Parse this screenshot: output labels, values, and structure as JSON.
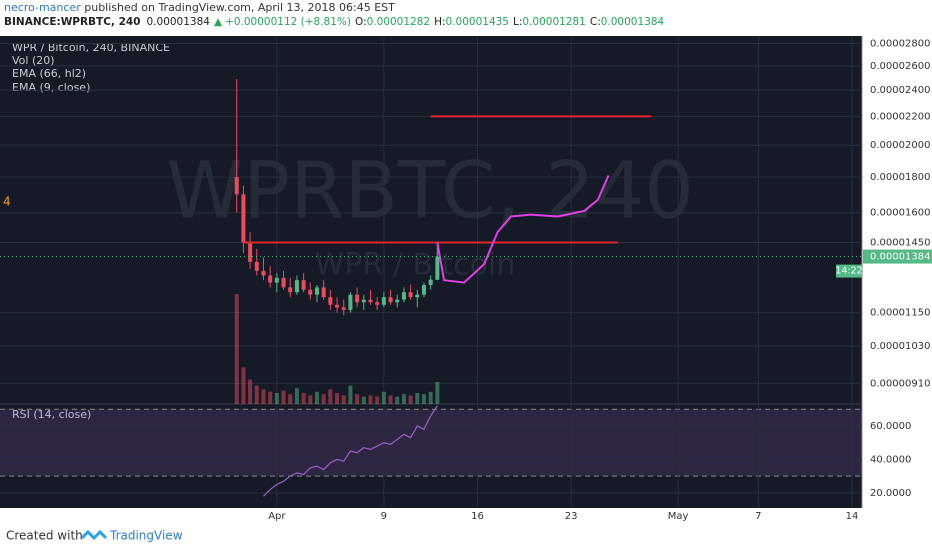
{
  "header": {
    "author": "necro-mancer",
    "published": " published on TradingView.com, April 13, 2018 06:45 EST",
    "symbol": "BINANCE:WPRBTC, 240",
    "last": "0.00001384",
    "arrow": "▲",
    "change": "+0.00000112 (+8.81%)",
    "o_label": "O:",
    "o": "0.00001282",
    "h_label": "H:",
    "h": "0.00001435",
    "l_label": "L:",
    "l": "0.00001281",
    "c_label": "C:",
    "c": "0.00001384"
  },
  "chart_data": {
    "type": "candlestick",
    "log_scale": true,
    "grid": true,
    "legend": [
      "WPR / Bitcoin, 240, BINANCE",
      "Vol (20)",
      "EMA (66, hl2)",
      "EMA (9, close)"
    ],
    "watermark": "WPRBTC, 240",
    "watermark_sub": "WPR / Bitcoin",
    "edge_label": "4",
    "countdown": "14:22",
    "up_color": "#53b987",
    "down_color": "#eb4d5c",
    "x": [
      -2,
      -1.5,
      -1,
      -0.5,
      0,
      0.5,
      1,
      1.5,
      2,
      2.5,
      3,
      3.5,
      4,
      4.5,
      5,
      5.5,
      6,
      6.5,
      7,
      7.5,
      8,
      8.5,
      9,
      9.5,
      10,
      10.5,
      11,
      11.5,
      12,
      12.5,
      13
    ],
    "open": [
      1.8e-05,
      1.7e-05,
      1.45e-05,
      1.36e-05,
      1.32e-05,
      1.3e-05,
      1.27e-05,
      1.29e-05,
      1.25e-05,
      1.23e-05,
      1.28e-05,
      1.24e-05,
      1.22e-05,
      1.25e-05,
      1.21e-05,
      1.18e-05,
      1.17e-05,
      1.16e-05,
      1.22e-05,
      1.19e-05,
      1.2e-05,
      1.19e-05,
      1.18e-05,
      1.21e-05,
      1.19e-05,
      1.2e-05,
      1.23e-05,
      1.21e-05,
      1.22e-05,
      1.26e-05,
      1.282e-05
    ],
    "high": [
      2.49e-05,
      1.75e-05,
      1.5e-05,
      1.42e-05,
      1.38e-05,
      1.34e-05,
      1.31e-05,
      1.32e-05,
      1.29e-05,
      1.3e-05,
      1.31e-05,
      1.27e-05,
      1.26e-05,
      1.28e-05,
      1.24e-05,
      1.21e-05,
      1.2e-05,
      1.23e-05,
      1.25e-05,
      1.22e-05,
      1.24e-05,
      1.21e-05,
      1.23e-05,
      1.24e-05,
      1.22e-05,
      1.25e-05,
      1.26e-05,
      1.24e-05,
      1.27e-05,
      1.3e-05,
      1.435e-05
    ],
    "low": [
      1.6e-05,
      1.4e-05,
      1.33e-05,
      1.3e-05,
      1.28e-05,
      1.25e-05,
      1.23e-05,
      1.24e-05,
      1.21e-05,
      1.22e-05,
      1.23e-05,
      1.2e-05,
      1.19e-05,
      1.2e-05,
      1.16e-05,
      1.15e-05,
      1.14e-05,
      1.15e-05,
      1.17e-05,
      1.16e-05,
      1.18e-05,
      1.16e-05,
      1.17e-05,
      1.18e-05,
      1.17e-05,
      1.19e-05,
      1.2e-05,
      1.17e-05,
      1.21e-05,
      1.24e-05,
      1.281e-05
    ],
    "close": [
      1.7e-05,
      1.45e-05,
      1.36e-05,
      1.32e-05,
      1.3e-05,
      1.27e-05,
      1.29e-05,
      1.25e-05,
      1.23e-05,
      1.28e-05,
      1.24e-05,
      1.22e-05,
      1.25e-05,
      1.21e-05,
      1.18e-05,
      1.17e-05,
      1.16e-05,
      1.22e-05,
      1.19e-05,
      1.2e-05,
      1.19e-05,
      1.18e-05,
      1.21e-05,
      1.19e-05,
      1.2e-05,
      1.23e-05,
      1.21e-05,
      1.22e-05,
      1.26e-05,
      1.282e-05,
      1.384e-05
    ],
    "volume": [
      900,
      300,
      200,
      150,
      120,
      100,
      90,
      110,
      80,
      130,
      90,
      70,
      100,
      80,
      120,
      90,
      70,
      150,
      80,
      60,
      70,
      60,
      100,
      70,
      60,
      80,
      70,
      90,
      80,
      100,
      180
    ],
    "xlim": [
      -19.7,
      44.75
    ],
    "xticks": [
      {
        "value": 1,
        "label": "Apr"
      },
      9,
      16,
      23,
      {
        "value": 31,
        "label": "May"
      },
      {
        "value": 37,
        "label": "7"
      },
      {
        "value": 44,
        "label": "14"
      }
    ],
    "ylim": [
      8.5e-06,
      2.87e-05
    ],
    "yticks": [
      {
        "value": 2.8e-05,
        "label": "0.00002800"
      },
      {
        "value": 2.6e-05,
        "label": "0.00002600"
      },
      {
        "value": 2.4e-05,
        "label": "0.00002400"
      },
      {
        "value": 2.2e-05,
        "label": "0.00002200"
      },
      {
        "value": 2e-05,
        "label": "0.00002000"
      },
      {
        "value": 1.8e-05,
        "label": "0.00001800"
      },
      {
        "value": 1.6e-05,
        "label": "0.00001600"
      },
      {
        "value": 1.45e-05,
        "label": "0.00001450"
      },
      {
        "value": 1.15e-05,
        "label": "0.00001150"
      },
      {
        "value": 1.03e-05,
        "label": "0.00001030"
      },
      {
        "value": 9.1e-06,
        "label": "0.00000910"
      }
    ],
    "drawings": [
      {
        "color": "#e0252d",
        "x": [
          12.5,
          29
        ],
        "values": [
          2.2e-05,
          2.2e-05
        ]
      },
      {
        "color": "#e0252d",
        "x": [
          -1.5,
          26.5
        ],
        "values": [
          1.45e-05,
          1.45e-05
        ]
      },
      {
        "color": "#e040e8",
        "x": [
          13,
          13.5,
          15,
          16.5,
          17.5,
          18.5,
          20,
          22,
          24,
          25,
          25.8
        ],
        "values": [
          1.45e-05,
          1.28e-05,
          1.27e-05,
          1.35e-05,
          1.5e-05,
          1.58e-05,
          1.59e-05,
          1.58e-05,
          1.61e-05,
          1.67e-05,
          1.81e-05
        ]
      }
    ],
    "rsi": {
      "name": "RSI (14, close)",
      "color": "#9c5fc4",
      "values": [
        null,
        null,
        null,
        null,
        18,
        22,
        25,
        27,
        30,
        32,
        31,
        35,
        36,
        34,
        38,
        40,
        39,
        45,
        44,
        47,
        46,
        48,
        50,
        49,
        52,
        55,
        53,
        60,
        58,
        66,
        72
      ],
      "ylim": [
        11,
        73.1
      ],
      "band": [
        30,
        70
      ],
      "yticks": [
        {
          "value": 60,
          "label": "60.0000"
        },
        {
          "value": 40,
          "label": "40.0000"
        },
        {
          "value": 20,
          "label": "20.0000"
        }
      ]
    }
  },
  "footer": {
    "created": "Created with",
    "brand": "TradingView"
  }
}
